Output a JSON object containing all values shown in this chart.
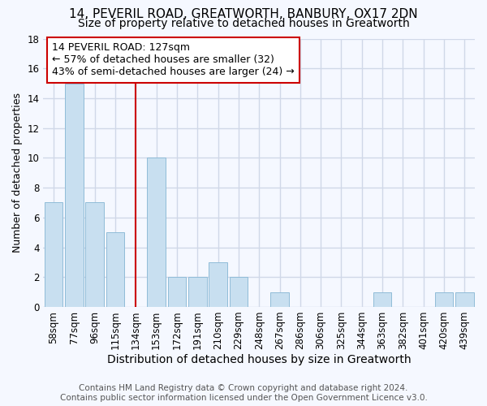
{
  "title_line1": "14, PEVERIL ROAD, GREATWORTH, BANBURY, OX17 2DN",
  "title_line2": "Size of property relative to detached houses in Greatworth",
  "xlabel": "Distribution of detached houses by size in Greatworth",
  "ylabel": "Number of detached properties",
  "categories": [
    "58sqm",
    "77sqm",
    "96sqm",
    "115sqm",
    "134sqm",
    "153sqm",
    "172sqm",
    "191sqm",
    "210sqm",
    "229sqm",
    "248sqm",
    "267sqm",
    "286sqm",
    "306sqm",
    "325sqm",
    "344sqm",
    "363sqm",
    "382sqm",
    "401sqm",
    "420sqm",
    "439sqm"
  ],
  "values": [
    7,
    15,
    7,
    5,
    0,
    10,
    2,
    2,
    3,
    2,
    0,
    1,
    0,
    0,
    0,
    0,
    1,
    0,
    0,
    1,
    1
  ],
  "bar_color": "#c8dff0",
  "bar_edgecolor": "#90bcd8",
  "vline_x": 4.0,
  "vline_color": "#cc0000",
  "ylim": [
    0,
    18
  ],
  "yticks": [
    0,
    2,
    4,
    6,
    8,
    10,
    12,
    14,
    16,
    18
  ],
  "annotation_line1": "14 PEVERIL ROAD: 127sqm",
  "annotation_line2": "← 57% of detached houses are smaller (32)",
  "annotation_line3": "43% of semi-detached houses are larger (24) →",
  "annotation_box_edgecolor": "#cc0000",
  "footer_line1": "Contains HM Land Registry data © Crown copyright and database right 2024.",
  "footer_line2": "Contains public sector information licensed under the Open Government Licence v3.0.",
  "bg_color": "#f5f8ff",
  "grid_color": "#d0d8e8",
  "title_fontsize": 11,
  "subtitle_fontsize": 10,
  "xlabel_fontsize": 10,
  "ylabel_fontsize": 9,
  "tick_fontsize": 8.5,
  "footer_fontsize": 7.5,
  "annot_fontsize": 9
}
